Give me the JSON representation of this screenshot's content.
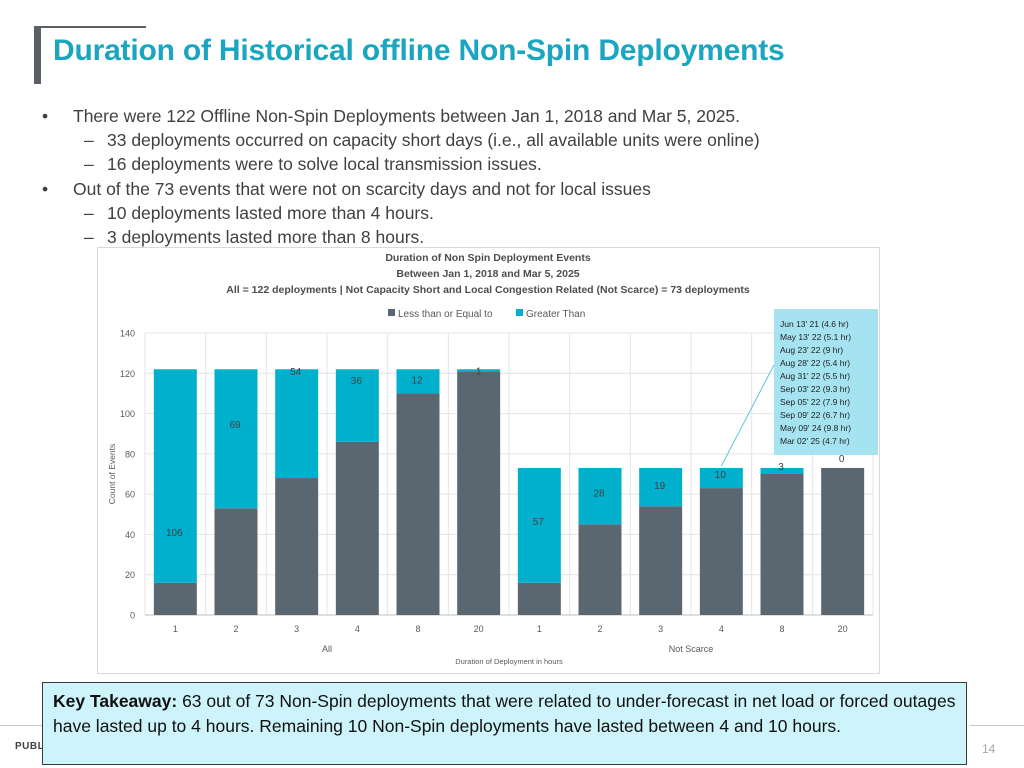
{
  "title": "Duration of Historical offline Non-Spin Deployments",
  "bullets": [
    {
      "level": 1,
      "text": "There were 122 Offline Non-Spin Deployments between Jan 1, 2018 and Mar 5, 2025."
    },
    {
      "level": 2,
      "text": "33 deployments occurred on capacity short days (i.e., all available units were online)"
    },
    {
      "level": 2,
      "text": "16 deployments were to solve local transmission issues."
    },
    {
      "level": 1,
      "text": "Out of the 73 events that were not on scarcity days and not for local issues"
    },
    {
      "level": 2,
      "text": "10 deployments lasted more than 4 hours."
    },
    {
      "level": 2,
      "text": "3 deployments lasted more than 8 hours."
    }
  ],
  "chart_data": {
    "type": "bar",
    "stacked": true,
    "title_lines": [
      "Duration of Non Spin Deployment Events",
      "Between Jan 1, 2018 and Mar 5, 2025",
      "All  = 122 deployments | Not Capacity Short and Local Congestion Related (Not Scarce)  = 73 deployments"
    ],
    "groups": [
      {
        "name": "All",
        "categories": [
          "1",
          "2",
          "3",
          "4",
          "8",
          "20"
        ]
      },
      {
        "name": "Not Scarce",
        "categories": [
          "1",
          "2",
          "3",
          "4",
          "8",
          "20"
        ]
      }
    ],
    "series": [
      {
        "name": "Less than or Equal to",
        "color": "#5b6770",
        "values": [
          16,
          53,
          68,
          86,
          110,
          121,
          16,
          45,
          54,
          63,
          70,
          73
        ]
      },
      {
        "name": "Greater Than",
        "color": "#00b0cc",
        "values": [
          106,
          69,
          54,
          36,
          12,
          1,
          57,
          28,
          19,
          10,
          3,
          0
        ]
      }
    ],
    "data_labels": [
      "106",
      "69",
      "54",
      "36",
      "12",
      "1",
      "57",
      "28",
      "19",
      "10",
      "3",
      "0"
    ],
    "xlabel": "Duration of Deployment in hours",
    "ylabel": "Count of Events",
    "ylim": [
      0,
      140
    ],
    "yticks": [
      0,
      20,
      40,
      60,
      80,
      100,
      120,
      140
    ],
    "legend_position": "top-center",
    "gridlines": true,
    "annotation": {
      "lines": [
        "Jun 13' 21 (4.6 hr)",
        "May 13' 22 (5.1 hr)",
        "Aug 23' 22 (9 hr)",
        "Aug 28' 22 (5.4 hr)",
        "Aug 31' 22 (5.5 hr)",
        "Sep 03' 22 (9.3 hr)",
        "Sep 05' 22 (7.9 hr)",
        "Sep 09' 22 (6.7 hr)",
        "May 09' 24 (9.8 hr)",
        "Mar 02' 25 (4.7 hr)"
      ],
      "color": "#a6e3f0",
      "points_to_bar": 10
    }
  },
  "takeaway": {
    "label": "Key Takeaway:",
    "text": " 63 out of 73 Non-Spin deployments that were related to under-forecast in net load or forced outages have lasted up to 4 hours. Remaining 10 Non-Spin deployments have lasted between 4 and 10 hours."
  },
  "footer": {
    "label": "PUBLIC",
    "page": "14"
  }
}
